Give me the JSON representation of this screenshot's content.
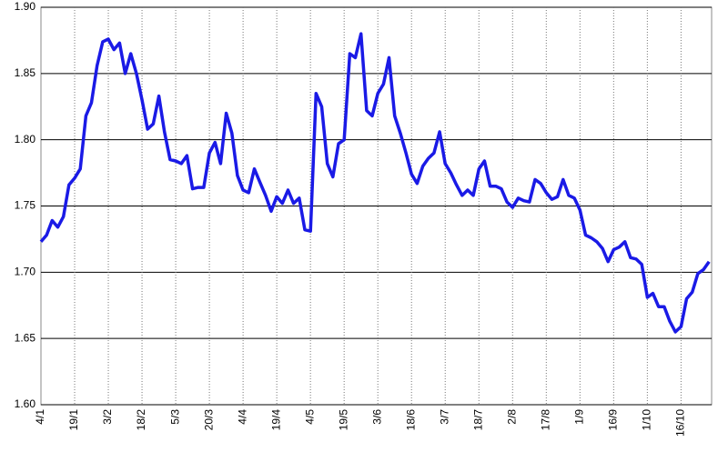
{
  "chart_data": {
    "type": "line",
    "color": "#1a1ae6",
    "grid": true,
    "categories": [
      "4/1",
      null,
      null,
      null,
      null,
      null,
      "19/1",
      null,
      null,
      null,
      null,
      null,
      "3/2",
      null,
      null,
      null,
      null,
      null,
      "18/2",
      null,
      null,
      null,
      null,
      null,
      "5/3",
      null,
      null,
      null,
      null,
      null,
      "20/3",
      null,
      null,
      null,
      null,
      null,
      "4/4",
      null,
      null,
      null,
      null,
      null,
      "19/4",
      null,
      null,
      null,
      null,
      null,
      "4/5",
      null,
      null,
      null,
      null,
      null,
      "19/5",
      null,
      null,
      null,
      null,
      null,
      "3/6",
      null,
      null,
      null,
      null,
      null,
      "18/6",
      null,
      null,
      null,
      null,
      null,
      "3/7",
      null,
      null,
      null,
      null,
      null,
      "18/7",
      null,
      null,
      null,
      null,
      null,
      "2/8",
      null,
      null,
      null,
      null,
      null,
      "17/8",
      null,
      null,
      null,
      null,
      null,
      "1/9",
      null,
      null,
      null,
      null,
      null,
      "16/9",
      null,
      null,
      null,
      null,
      null,
      "1/10",
      null,
      null,
      null,
      null,
      null,
      "16/10",
      null,
      null,
      null,
      null,
      null
    ],
    "values": [
      1.723,
      1.728,
      1.739,
      1.734,
      1.742,
      1.766,
      1.771,
      1.778,
      1.818,
      1.828,
      1.856,
      1.874,
      1.876,
      1.868,
      1.873,
      1.85,
      1.865,
      1.85,
      1.83,
      1.808,
      1.812,
      1.833,
      1.806,
      1.785,
      1.784,
      1.782,
      1.788,
      1.763,
      1.764,
      1.764,
      1.79,
      1.798,
      1.782,
      1.82,
      1.805,
      1.773,
      1.762,
      1.76,
      1.778,
      1.768,
      1.758,
      1.746,
      1.757,
      1.752,
      1.762,
      1.752,
      1.756,
      1.732,
      1.731,
      1.835,
      1.825,
      1.782,
      1.772,
      1.797,
      1.8,
      1.865,
      1.862,
      1.88,
      1.822,
      1.818,
      1.835,
      1.842,
      1.862,
      1.818,
      1.805,
      1.79,
      1.774,
      1.767,
      1.78,
      1.786,
      1.79,
      1.806,
      1.782,
      1.775,
      1.766,
      1.758,
      1.762,
      1.758,
      1.778,
      1.784,
      1.765,
      1.765,
      1.763,
      1.753,
      1.749,
      1.756,
      1.754,
      1.753,
      1.77,
      1.767,
      1.76,
      1.755,
      1.757,
      1.77,
      1.758,
      1.756,
      1.747,
      1.728,
      1.726,
      1.723,
      1.718,
      1.708,
      1.717,
      1.719,
      1.723,
      1.711,
      1.71,
      1.706,
      1.681,
      1.684,
      1.674,
      1.674,
      1.663,
      1.655,
      1.659,
      1.68,
      1.685,
      1.699,
      1.702,
      1.708
    ],
    "ylim": [
      1.6,
      1.9
    ],
    "yticks": [
      {
        "value": 1.6,
        "label": "1.60"
      },
      1.65,
      {
        "value": 1.7,
        "label": "1.70"
      },
      1.75,
      {
        "value": 1.8,
        "label": "1.80"
      },
      1.85,
      {
        "value": 1.9,
        "label": "1.90"
      }
    ]
  }
}
